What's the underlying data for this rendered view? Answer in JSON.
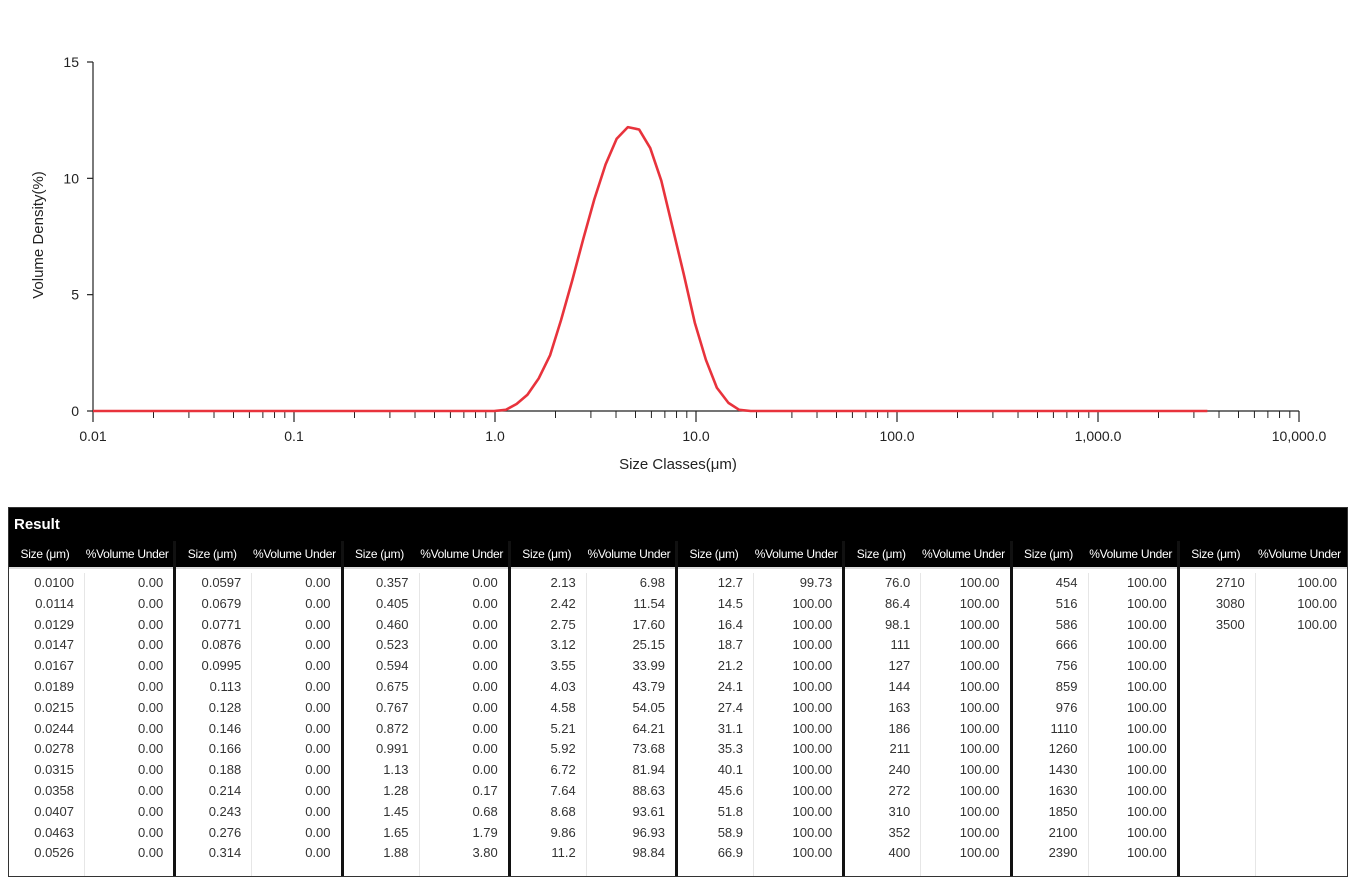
{
  "chart_data": {
    "type": "line",
    "xlabel": "Size Classes(μm)",
    "ylabel": "Volume Density(%)",
    "x_scale": "log",
    "xlim": [
      0.01,
      10000
    ],
    "ylim": [
      0,
      15
    ],
    "x_ticks": [
      {
        "value": 0.01,
        "label": "0.01"
      },
      {
        "value": 0.1,
        "label": "0.1"
      },
      {
        "value": 1,
        "label": "1.0"
      },
      {
        "value": 10,
        "label": "10.0"
      },
      {
        "value": 100,
        "label": "100.0"
      },
      {
        "value": 1000,
        "label": "1,000.0"
      },
      {
        "value": 10000,
        "label": "10,000.0"
      }
    ],
    "y_ticks": [
      {
        "value": 0,
        "label": "0"
      },
      {
        "value": 5,
        "label": "5"
      },
      {
        "value": 10,
        "label": "10"
      },
      {
        "value": 15,
        "label": "15"
      }
    ],
    "grid": false,
    "line_color": "#e8333c",
    "series": [
      {
        "x": [
          0.01,
          0.0114,
          0.0129,
          0.0147,
          0.0167,
          0.0189,
          0.0215,
          0.0244,
          0.0278,
          0.0315,
          0.0358,
          0.0407,
          0.0463,
          0.0526,
          0.0597,
          0.0679,
          0.0771,
          0.0876,
          0.0995,
          0.113,
          0.128,
          0.146,
          0.166,
          0.188,
          0.214,
          0.243,
          0.276,
          0.314,
          0.357,
          0.405,
          0.46,
          0.523,
          0.594,
          0.675,
          0.767,
          0.872,
          0.991,
          1.13,
          1.28,
          1.45,
          1.65,
          1.88,
          2.13,
          2.42,
          2.75,
          3.12,
          3.55,
          4.03,
          4.58,
          5.21,
          5.92,
          6.72,
          7.64,
          8.68,
          9.86,
          11.2,
          12.7,
          14.5,
          16.4,
          18.7,
          21.2,
          24.1,
          27.4,
          31.1,
          35.3,
          40.1,
          45.6,
          51.8,
          58.9,
          66.9,
          76.0,
          86.4,
          98.1,
          111,
          127,
          144,
          163,
          186,
          211,
          240,
          272,
          310,
          352,
          400,
          454,
          516,
          586,
          666,
          756,
          859,
          976,
          1110,
          1260,
          1430,
          1630,
          1850,
          2100,
          2390,
          2710,
          3080,
          3500
        ],
        "y": [
          0,
          0,
          0,
          0,
          0,
          0,
          0,
          0,
          0,
          0,
          0,
          0,
          0,
          0,
          0,
          0,
          0,
          0,
          0,
          0,
          0,
          0,
          0,
          0,
          0,
          0,
          0,
          0,
          0,
          0,
          0,
          0,
          0,
          0,
          0,
          0,
          0,
          0.05,
          0.3,
          0.7,
          1.4,
          2.4,
          3.9,
          5.6,
          7.4,
          9.1,
          10.6,
          11.7,
          12.2,
          12.1,
          11.3,
          9.9,
          7.9,
          5.9,
          3.8,
          2.2,
          1.0,
          0.35,
          0.05,
          0,
          0,
          0,
          0,
          0,
          0,
          0,
          0,
          0,
          0,
          0,
          0,
          0,
          0,
          0,
          0,
          0,
          0,
          0,
          0,
          0,
          0,
          0,
          0,
          0,
          0,
          0,
          0,
          0,
          0,
          0,
          0,
          0,
          0,
          0,
          0,
          0,
          0,
          0,
          0,
          0,
          0
        ]
      }
    ]
  },
  "result": {
    "title": "Result",
    "size_header": "Size (μm)",
    "vol_header": "%Volume Under",
    "groups": [
      {
        "sizes": [
          "0.0100",
          "0.0114",
          "0.0129",
          "0.0147",
          "0.0167",
          "0.0189",
          "0.0215",
          "0.0244",
          "0.0278",
          "0.0315",
          "0.0358",
          "0.0407",
          "0.0463",
          "0.0526"
        ],
        "vols": [
          "0.00",
          "0.00",
          "0.00",
          "0.00",
          "0.00",
          "0.00",
          "0.00",
          "0.00",
          "0.00",
          "0.00",
          "0.00",
          "0.00",
          "0.00",
          "0.00"
        ]
      },
      {
        "sizes": [
          "0.0597",
          "0.0679",
          "0.0771",
          "0.0876",
          "0.0995",
          "0.113",
          "0.128",
          "0.146",
          "0.166",
          "0.188",
          "0.214",
          "0.243",
          "0.276",
          "0.314"
        ],
        "vols": [
          "0.00",
          "0.00",
          "0.00",
          "0.00",
          "0.00",
          "0.00",
          "0.00",
          "0.00",
          "0.00",
          "0.00",
          "0.00",
          "0.00",
          "0.00",
          "0.00"
        ]
      },
      {
        "sizes": [
          "0.357",
          "0.405",
          "0.460",
          "0.523",
          "0.594",
          "0.675",
          "0.767",
          "0.872",
          "0.991",
          "1.13",
          "1.28",
          "1.45",
          "1.65",
          "1.88"
        ],
        "vols": [
          "0.00",
          "0.00",
          "0.00",
          "0.00",
          "0.00",
          "0.00",
          "0.00",
          "0.00",
          "0.00",
          "0.00",
          "0.17",
          "0.68",
          "1.79",
          "3.80"
        ]
      },
      {
        "sizes": [
          "2.13",
          "2.42",
          "2.75",
          "3.12",
          "3.55",
          "4.03",
          "4.58",
          "5.21",
          "5.92",
          "6.72",
          "7.64",
          "8.68",
          "9.86",
          "11.2"
        ],
        "vols": [
          "6.98",
          "11.54",
          "17.60",
          "25.15",
          "33.99",
          "43.79",
          "54.05",
          "64.21",
          "73.68",
          "81.94",
          "88.63",
          "93.61",
          "96.93",
          "98.84"
        ]
      },
      {
        "sizes": [
          "12.7",
          "14.5",
          "16.4",
          "18.7",
          "21.2",
          "24.1",
          "27.4",
          "31.1",
          "35.3",
          "40.1",
          "45.6",
          "51.8",
          "58.9",
          "66.9"
        ],
        "vols": [
          "99.73",
          "100.00",
          "100.00",
          "100.00",
          "100.00",
          "100.00",
          "100.00",
          "100.00",
          "100.00",
          "100.00",
          "100.00",
          "100.00",
          "100.00",
          "100.00"
        ]
      },
      {
        "sizes": [
          "76.0",
          "86.4",
          "98.1",
          "111",
          "127",
          "144",
          "163",
          "186",
          "211",
          "240",
          "272",
          "310",
          "352",
          "400"
        ],
        "vols": [
          "100.00",
          "100.00",
          "100.00",
          "100.00",
          "100.00",
          "100.00",
          "100.00",
          "100.00",
          "100.00",
          "100.00",
          "100.00",
          "100.00",
          "100.00",
          "100.00"
        ]
      },
      {
        "sizes": [
          "454",
          "516",
          "586",
          "666",
          "756",
          "859",
          "976",
          "1110",
          "1260",
          "1430",
          "1630",
          "1850",
          "2100",
          "2390"
        ],
        "vols": [
          "100.00",
          "100.00",
          "100.00",
          "100.00",
          "100.00",
          "100.00",
          "100.00",
          "100.00",
          "100.00",
          "100.00",
          "100.00",
          "100.00",
          "100.00",
          "100.00"
        ]
      },
      {
        "sizes": [
          "2710",
          "3080",
          "3500"
        ],
        "vols": [
          "100.00",
          "100.00",
          "100.00"
        ]
      }
    ]
  }
}
